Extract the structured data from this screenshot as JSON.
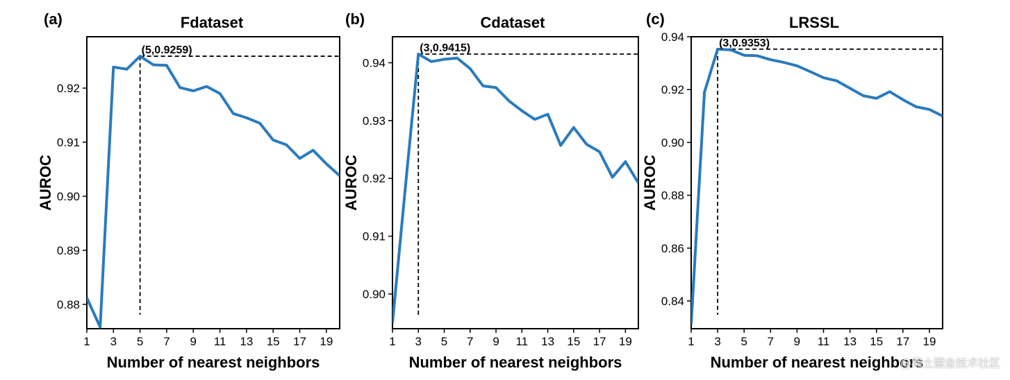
{
  "chart_data": [
    {
      "type": "line",
      "panel_label": "(a)",
      "title": "Fdataset",
      "xlabel": "Number of nearest neighbors",
      "ylabel": "AUROC",
      "xlim": [
        1,
        20
      ],
      "ylim": [
        0.8755,
        0.9295
      ],
      "xticks": [
        1,
        3,
        5,
        7,
        9,
        11,
        13,
        15,
        17,
        19
      ],
      "yticks": [
        0.88,
        0.89,
        0.9,
        0.91,
        0.92
      ],
      "ytick_labels": [
        "0.88",
        "0.89",
        "0.90",
        "0.91",
        "0.92"
      ],
      "series": [
        {
          "name": "AUROC",
          "x": [
            1,
            2,
            3,
            4,
            5,
            6,
            7,
            8,
            9,
            10,
            11,
            12,
            13,
            14,
            15,
            16,
            17,
            18,
            19,
            20
          ],
          "values": [
            0.8812,
            0.8758,
            0.9239,
            0.9235,
            0.9259,
            0.9243,
            0.9242,
            0.9201,
            0.9195,
            0.9203,
            0.919,
            0.9153,
            0.9145,
            0.9135,
            0.9104,
            0.9095,
            0.907,
            0.9085,
            0.906,
            0.9038
          ]
        }
      ],
      "highlight": {
        "x": 5,
        "y": 0.9259,
        "label": "(5,0.9259)"
      }
    },
    {
      "type": "line",
      "panel_label": "(b)",
      "title": "Cdataset",
      "xlabel": "Number of nearest neighbors",
      "ylabel": "AUROC",
      "xlim": [
        1,
        20
      ],
      "ylim": [
        0.894,
        0.9445
      ],
      "xticks": [
        1,
        3,
        5,
        7,
        9,
        11,
        13,
        15,
        17,
        19
      ],
      "yticks": [
        0.9,
        0.91,
        0.92,
        0.93,
        0.94
      ],
      "ytick_labels": [
        "0.90",
        "0.91",
        "0.92",
        "0.93",
        "0.94"
      ],
      "series": [
        {
          "name": "AUROC",
          "x": [
            1,
            2,
            3,
            4,
            5,
            6,
            7,
            8,
            9,
            10,
            11,
            12,
            13,
            14,
            15,
            16,
            17,
            18,
            19,
            20
          ],
          "values": [
            0.895,
            0.9185,
            0.9415,
            0.9402,
            0.9406,
            0.9408,
            0.939,
            0.936,
            0.9357,
            0.9334,
            0.9317,
            0.9302,
            0.9311,
            0.9257,
            0.9288,
            0.9259,
            0.9246,
            0.9202,
            0.9229,
            0.9192
          ]
        }
      ],
      "highlight": {
        "x": 3,
        "y": 0.9415,
        "label": "(3,0.9415)"
      }
    },
    {
      "type": "line",
      "panel_label": "(c)",
      "title": "LRSSL",
      "xlabel": "Number of nearest neighbors",
      "ylabel": "AUROC",
      "xlim": [
        1,
        20
      ],
      "ylim": [
        0.8295,
        0.94
      ],
      "xticks": [
        1,
        3,
        5,
        7,
        9,
        11,
        13,
        15,
        17,
        19
      ],
      "yticks": [
        0.84,
        0.86,
        0.88,
        0.9,
        0.92,
        0.94
      ],
      "ytick_labels": [
        "0.84",
        "0.86",
        "0.88",
        "0.90",
        "0.92",
        "0.94"
      ],
      "series": [
        {
          "name": "AUROC",
          "x": [
            1,
            2,
            3,
            4,
            5,
            6,
            7,
            8,
            9,
            10,
            11,
            12,
            13,
            14,
            15,
            16,
            17,
            18,
            19,
            20
          ],
          "values": [
            0.831,
            0.919,
            0.9353,
            0.935,
            0.933,
            0.9328,
            0.9313,
            0.9303,
            0.929,
            0.9268,
            0.9245,
            0.9233,
            0.9205,
            0.9177,
            0.9167,
            0.9192,
            0.9162,
            0.9135,
            0.9125,
            0.91
          ]
        }
      ],
      "highlight": {
        "x": 3,
        "y": 0.9353,
        "label": "(3,0.9353)"
      }
    }
  ],
  "colors": {
    "line": "#2a7bbd",
    "axis": "#000000",
    "guide": "#000000"
  },
  "watermark": "@稀土掘金技术社区"
}
